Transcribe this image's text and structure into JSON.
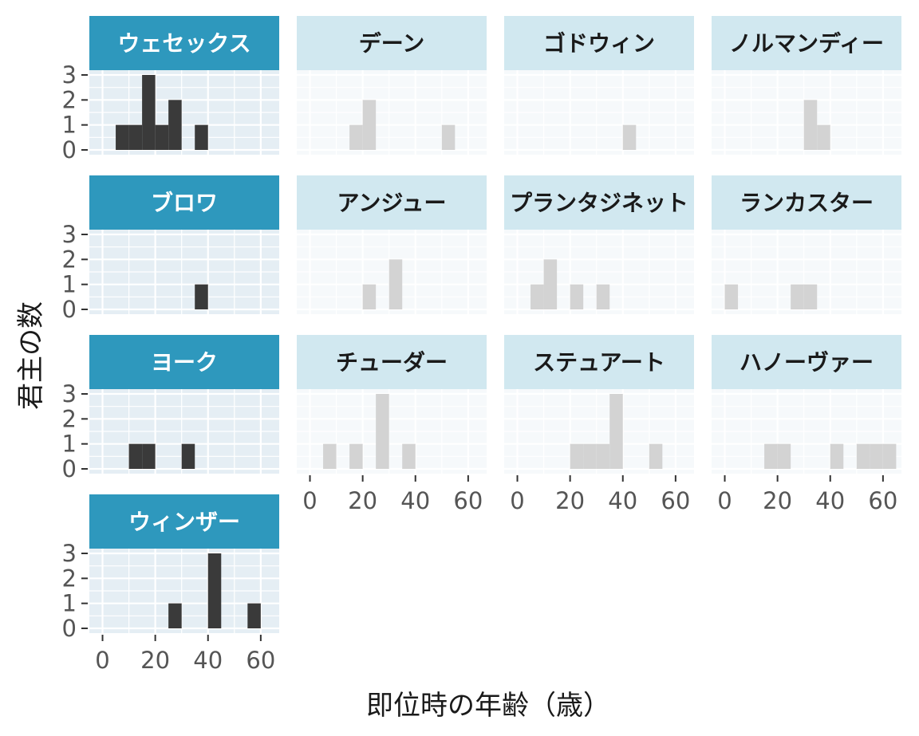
{
  "chart_data": {
    "type": "bar",
    "chart_subtype": "faceted histogram",
    "xlabel": "即位時の年齢（歳）",
    "ylabel": "君主の数",
    "x_ticks": [
      0,
      20,
      40,
      60
    ],
    "y_ticks": [
      0,
      1,
      2,
      3
    ],
    "xlim": [
      -5,
      67
    ],
    "ylim": [
      0,
      3
    ],
    "bin_width": 5,
    "grid": true,
    "colors": {
      "active_strip": "#2e98bd",
      "active_strip_text": "#ffffff",
      "inactive_strip": "#d1e8f0",
      "inactive_strip_text": "#1a1a1a",
      "active_panel_bg": "#e5eef4",
      "inactive_panel_bg": "#f6f9fb",
      "active_bar": "#3a3a3a",
      "inactive_bar": "#d3d3d3",
      "tick_text": "#555555"
    },
    "facets": [
      {
        "name": "ウェセックス",
        "highlighted": true,
        "bins": [
          {
            "x0": 5,
            "x1": 10,
            "count": 1
          },
          {
            "x0": 10,
            "x1": 15,
            "count": 1
          },
          {
            "x0": 15,
            "x1": 20,
            "count": 3
          },
          {
            "x0": 20,
            "x1": 25,
            "count": 1
          },
          {
            "x0": 25,
            "x1": 30,
            "count": 2
          },
          {
            "x0": 35,
            "x1": 40,
            "count": 1
          }
        ]
      },
      {
        "name": "デーン",
        "highlighted": false,
        "bins": [
          {
            "x0": 15,
            "x1": 20,
            "count": 1
          },
          {
            "x0": 20,
            "x1": 25,
            "count": 2
          },
          {
            "x0": 50,
            "x1": 55,
            "count": 1
          }
        ]
      },
      {
        "name": "ゴドウィン",
        "highlighted": false,
        "bins": [
          {
            "x0": 40,
            "x1": 45,
            "count": 1
          }
        ]
      },
      {
        "name": "ノルマンディー",
        "highlighted": false,
        "bins": [
          {
            "x0": 30,
            "x1": 35,
            "count": 2
          },
          {
            "x0": 35,
            "x1": 40,
            "count": 1
          }
        ]
      },
      {
        "name": "ブロワ",
        "highlighted": true,
        "bins": [
          {
            "x0": 35,
            "x1": 40,
            "count": 1
          }
        ]
      },
      {
        "name": "アンジュー",
        "highlighted": false,
        "bins": [
          {
            "x0": 20,
            "x1": 25,
            "count": 1
          },
          {
            "x0": 30,
            "x1": 35,
            "count": 2
          }
        ]
      },
      {
        "name": "プランタジネット",
        "highlighted": false,
        "bins": [
          {
            "x0": 5,
            "x1": 10,
            "count": 1
          },
          {
            "x0": 10,
            "x1": 15,
            "count": 2
          },
          {
            "x0": 20,
            "x1": 25,
            "count": 1
          },
          {
            "x0": 30,
            "x1": 35,
            "count": 1
          }
        ]
      },
      {
        "name": "ランカスター",
        "highlighted": false,
        "bins": [
          {
            "x0": 0,
            "x1": 5,
            "count": 1
          },
          {
            "x0": 25,
            "x1": 30,
            "count": 1
          },
          {
            "x0": 30,
            "x1": 35,
            "count": 1
          }
        ]
      },
      {
        "name": "ヨーク",
        "highlighted": true,
        "bins": [
          {
            "x0": 10,
            "x1": 15,
            "count": 1
          },
          {
            "x0": 15,
            "x1": 20,
            "count": 1
          },
          {
            "x0": 30,
            "x1": 35,
            "count": 1
          }
        ]
      },
      {
        "name": "チューダー",
        "highlighted": false,
        "bins": [
          {
            "x0": 5,
            "x1": 10,
            "count": 1
          },
          {
            "x0": 15,
            "x1": 20,
            "count": 1
          },
          {
            "x0": 25,
            "x1": 30,
            "count": 3
          },
          {
            "x0": 35,
            "x1": 40,
            "count": 1
          }
        ]
      },
      {
        "name": "ステュアート",
        "highlighted": false,
        "bins": [
          {
            "x0": 20,
            "x1": 25,
            "count": 1
          },
          {
            "x0": 25,
            "x1": 30,
            "count": 1
          },
          {
            "x0": 30,
            "x1": 35,
            "count": 1
          },
          {
            "x0": 35,
            "x1": 40,
            "count": 3
          },
          {
            "x0": 50,
            "x1": 55,
            "count": 1
          }
        ]
      },
      {
        "name": "ハノーヴァー",
        "highlighted": false,
        "bins": [
          {
            "x0": 15,
            "x1": 20,
            "count": 1
          },
          {
            "x0": 20,
            "x1": 25,
            "count": 1
          },
          {
            "x0": 40,
            "x1": 45,
            "count": 1
          },
          {
            "x0": 50,
            "x1": 55,
            "count": 1
          },
          {
            "x0": 55,
            "x1": 60,
            "count": 1
          },
          {
            "x0": 60,
            "x1": 65,
            "count": 1
          }
        ]
      },
      {
        "name": "ウィンザー",
        "highlighted": true,
        "bins": [
          {
            "x0": 25,
            "x1": 30,
            "count": 1
          },
          {
            "x0": 40,
            "x1": 45,
            "count": 3
          },
          {
            "x0": 55,
            "x1": 60,
            "count": 1
          }
        ]
      }
    ]
  }
}
